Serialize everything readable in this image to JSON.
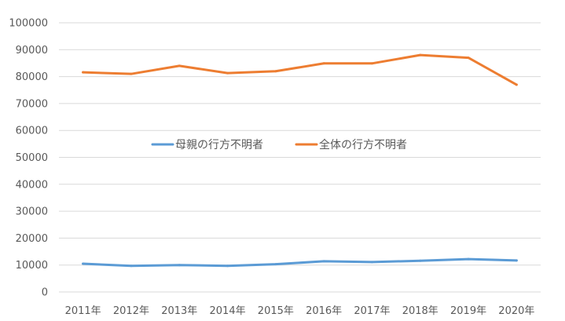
{
  "chart_data": {
    "type": "line",
    "title": "",
    "xlabel": "",
    "ylabel": "",
    "categories": [
      "2011年",
      "2012年",
      "2013年",
      "2014年",
      "2015年",
      "2016年",
      "2017年",
      "2018年",
      "2019年",
      "2020年"
    ],
    "y_ticks": [
      "0",
      "10000",
      "20000",
      "30000",
      "40000",
      "50000",
      "60000",
      "70000",
      "80000",
      "90000",
      "100000"
    ],
    "ylim": [
      0,
      100000
    ],
    "grid": true,
    "legend_position": "center",
    "series": [
      {
        "name": "母親の行方不明者",
        "color": "#5b9bd5",
        "values": [
          10500,
          9700,
          10000,
          9700,
          10300,
          11400,
          11100,
          11600,
          12200,
          11700
        ]
      },
      {
        "name": "全体の行方不明者",
        "color": "#ed7d31",
        "values": [
          81600,
          81000,
          84000,
          81300,
          82000,
          84900,
          84900,
          88000,
          87000,
          77000
        ]
      }
    ]
  }
}
